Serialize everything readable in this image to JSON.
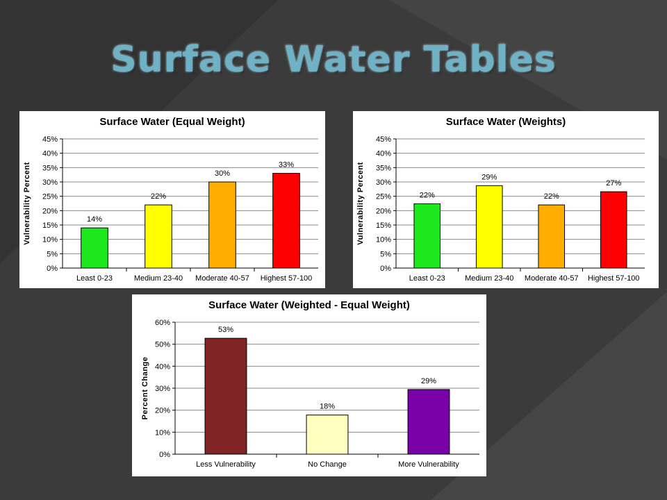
{
  "slide": {
    "title": "Surface Water Tables"
  },
  "colors": {
    "green": "#1de81d",
    "yellow": "#ffff00",
    "orange": "#ffae00",
    "red": "#ff0000",
    "maroon": "#7f2324",
    "cream": "#ffffc0",
    "purple": "#7a00a8"
  },
  "chart_data": [
    {
      "type": "bar",
      "title": "Surface Water (Equal Weight)",
      "ylabel": "Vulnerability Percent",
      "xlabel": "",
      "categories": [
        "Least  0-23",
        "Medium 23-40",
        "Moderate 40-57",
        "Highest 57-100"
      ],
      "values": [
        14,
        22,
        30,
        33
      ],
      "value_labels": [
        "14%",
        "22%",
        "30%",
        "33%"
      ],
      "bar_colors": [
        "#1de81d",
        "#ffff00",
        "#ffae00",
        "#ff0000"
      ],
      "ylim": [
        0,
        45
      ],
      "yticks": [
        0,
        5,
        10,
        15,
        20,
        25,
        30,
        35,
        40,
        45
      ],
      "ytick_labels": [
        "0%",
        "5%",
        "10%",
        "15%",
        "20%",
        "25%",
        "30%",
        "35%",
        "40%",
        "45%"
      ],
      "grid": true
    },
    {
      "type": "bar",
      "title": "Surface Water (Weights)",
      "ylabel": "Vulnerability Percent",
      "xlabel": "",
      "categories": [
        "Least  0-23",
        "Medium 23-40",
        "Moderate 40-57",
        "Highest 57-100"
      ],
      "values": [
        22.4,
        28.7,
        22,
        26.6
      ],
      "value_labels": [
        "22%",
        "29%",
        "22%",
        "27%"
      ],
      "bar_colors": [
        "#1de81d",
        "#ffff00",
        "#ffae00",
        "#ff0000"
      ],
      "ylim": [
        0,
        45
      ],
      "yticks": [
        0,
        5,
        10,
        15,
        20,
        25,
        30,
        35,
        40,
        45
      ],
      "ytick_labels": [
        "0%",
        "5%",
        "10%",
        "15%",
        "20%",
        "25%",
        "30%",
        "35%",
        "40%",
        "45%"
      ],
      "grid": true
    },
    {
      "type": "bar",
      "title": "Surface Water (Weighted - Equal Weight)",
      "ylabel": "Percent Change",
      "xlabel": "",
      "categories": [
        "Less Vulnerability",
        "No Change",
        "More Vulnerability"
      ],
      "values": [
        52.7,
        17.8,
        29.4
      ],
      "value_labels": [
        "53%",
        "18%",
        "29%"
      ],
      "bar_colors": [
        "#7f2324",
        "#ffffc0",
        "#7a00a8"
      ],
      "ylim": [
        0,
        60
      ],
      "yticks": [
        0,
        10,
        20,
        30,
        40,
        50,
        60
      ],
      "ytick_labels": [
        "0%",
        "10%",
        "20%",
        "30%",
        "40%",
        "50%",
        "60%"
      ],
      "grid": true
    }
  ]
}
